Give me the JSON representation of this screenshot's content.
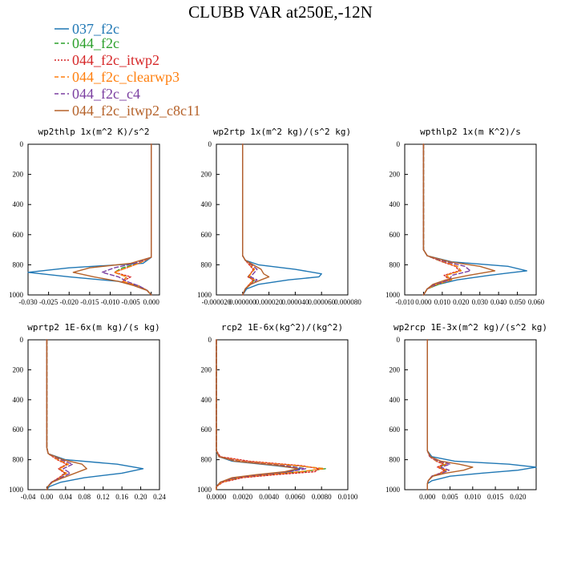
{
  "figure": {
    "title": "CLUBB VAR at250E,-12N"
  },
  "colors": {
    "037_f2c": "#1f77b4",
    "044_f2c": "#2ca02c",
    "044_f2c_itwp2": "#d62728",
    "044_f2c_clearwp3": "#ff7f0e",
    "044_f2c_c4": "#7b3fa0",
    "044_f2c_itwp2_c8c11": "#b5622a"
  },
  "legend": [
    {
      "name": "037_f2c",
      "color": "#1f77b4",
      "dash": "solid"
    },
    {
      "name": "044_f2c",
      "color": "#2ca02c",
      "dash": "dashed"
    },
    {
      "name": "044_f2c_itwp2",
      "color": "#d62728",
      "dash": "dotted"
    },
    {
      "name": "044_f2c_clearwp3",
      "color": "#ff7f0e",
      "dash": "dashed"
    },
    {
      "name": "044_f2c_c4",
      "color": "#7b3fa0",
      "dash": "dashed"
    },
    {
      "name": "044_f2c_itwp2_c8c11",
      "color": "#b5622a",
      "dash": "solid"
    }
  ],
  "chart_data": [
    {
      "type": "line",
      "title": "wp2thlp  1x(m^2 K)/s^2",
      "xlim": [
        -0.03,
        0.002
      ],
      "ylim": [
        1000,
        0
      ],
      "xticks": [
        -0.03,
        -0.025,
        -0.02,
        -0.015,
        -0.01,
        -0.005,
        0.0
      ],
      "xtick_labels": [
        "-0.030",
        "-0.025",
        "-0.020",
        "-0.015",
        "-0.010",
        "-0.005",
        "0.000"
      ],
      "yticks": [
        0,
        200,
        400,
        600,
        800,
        1000
      ],
      "y": [
        0,
        700,
        750,
        790,
        820,
        850,
        880,
        910,
        940,
        970,
        1000
      ],
      "series": [
        {
          "name": "037_f2c",
          "values": [
            0,
            0,
            0,
            -0.002,
            -0.02,
            -0.03,
            -0.02,
            -0.008,
            -0.003,
            -0.001,
            0
          ]
        },
        {
          "name": "044_f2c",
          "values": [
            0,
            0,
            0,
            -0.003,
            -0.007,
            -0.009,
            -0.006,
            -0.007,
            -0.004,
            -0.001,
            0
          ]
        },
        {
          "name": "044_f2c_itwp2",
          "values": [
            0,
            0,
            0,
            -0.003,
            -0.006,
            -0.009,
            -0.005,
            -0.007,
            -0.004,
            -0.001,
            0
          ]
        },
        {
          "name": "044_f2c_clearwp3",
          "values": [
            0,
            0,
            0,
            -0.003,
            -0.006,
            -0.009,
            -0.006,
            -0.007,
            -0.003,
            -0.001,
            0
          ]
        },
        {
          "name": "044_f2c_c4",
          "values": [
            0,
            0,
            0,
            -0.004,
            -0.009,
            -0.012,
            -0.008,
            -0.006,
            -0.003,
            -0.001,
            0
          ]
        },
        {
          "name": "044_f2c_itwp2_c8c11",
          "values": [
            0,
            0,
            0,
            -0.005,
            -0.015,
            -0.019,
            -0.014,
            -0.008,
            -0.004,
            -0.001,
            0
          ]
        }
      ]
    },
    {
      "type": "line",
      "title": "wp2rtp  1x(m^2 kg)/(s^2 kg)",
      "xlim": [
        -2e-05,
        8e-05
      ],
      "ylim": [
        1000,
        0
      ],
      "xticks": [
        -2e-05,
        0.0,
        2e-05,
        4e-05,
        6e-05,
        8e-05
      ],
      "xtick_labels": [
        "-0.000020",
        "0.000000",
        "0.000020",
        "0.000040",
        "0.000060",
        "0.000080"
      ],
      "yticks": [
        0,
        200,
        400,
        600,
        800,
        1000
      ],
      "y": [
        0,
        740,
        770,
        800,
        830,
        860,
        880,
        900,
        930,
        960,
        1000
      ],
      "series": [
        {
          "name": "037_f2c",
          "values": [
            0,
            0,
            2e-06,
            1.2e-05,
            4e-05,
            6e-05,
            5.8e-05,
            3.5e-05,
            1.2e-05,
            3e-06,
            0
          ]
        },
        {
          "name": "044_f2c",
          "values": [
            0,
            0,
            2e-06,
            6e-06,
            9e-06,
            6e-06,
            4e-06,
            9e-06,
            6e-06,
            2e-06,
            0
          ]
        },
        {
          "name": "044_f2c_itwp2",
          "values": [
            0,
            0,
            2e-06,
            5e-06,
            8e-06,
            6e-06,
            4e-06,
            8e-06,
            5e-06,
            2e-06,
            0
          ]
        },
        {
          "name": "044_f2c_clearwp3",
          "values": [
            0,
            0,
            2e-06,
            6e-06,
            9e-06,
            6e-06,
            5e-06,
            9e-06,
            5e-06,
            2e-06,
            0
          ]
        },
        {
          "name": "044_f2c_c4",
          "values": [
            0,
            0,
            2e-06,
            7e-06,
            1.1e-05,
            8e-06,
            6e-06,
            1.1e-05,
            6e-06,
            2e-06,
            0
          ]
        },
        {
          "name": "044_f2c_itwp2_c8c11",
          "values": [
            0,
            0,
            2e-06,
            8e-06,
            1.4e-05,
            1.6e-05,
            2e-05,
            1.4e-05,
            6e-06,
            2e-06,
            0
          ]
        }
      ]
    },
    {
      "type": "line",
      "title": "wpthlp2  1x(m K^2)/s",
      "xlim": [
        -0.01,
        0.06
      ],
      "ylim": [
        1000,
        0
      ],
      "xticks": [
        -0.01,
        0.0,
        0.01,
        0.02,
        0.03,
        0.04,
        0.05,
        0.06
      ],
      "xtick_labels": [
        "-0.010",
        "0.000",
        "0.010",
        "0.020",
        "0.030",
        "0.040",
        "0.050",
        "0.060"
      ],
      "yticks": [
        0,
        200,
        400,
        600,
        800,
        1000
      ],
      "y": [
        0,
        700,
        740,
        780,
        810,
        840,
        870,
        900,
        930,
        960,
        1000
      ],
      "series": [
        {
          "name": "037_f2c",
          "values": [
            0,
            0,
            0.002,
            0.015,
            0.045,
            0.055,
            0.035,
            0.018,
            0.008,
            0.002,
            0
          ]
        },
        {
          "name": "044_f2c",
          "values": [
            0,
            0,
            0.002,
            0.01,
            0.018,
            0.02,
            0.012,
            0.015,
            0.008,
            0.002,
            0
          ]
        },
        {
          "name": "044_f2c_itwp2",
          "values": [
            0,
            0,
            0.002,
            0.01,
            0.017,
            0.019,
            0.011,
            0.014,
            0.007,
            0.002,
            0
          ]
        },
        {
          "name": "044_f2c_clearwp3",
          "values": [
            0,
            0,
            0.002,
            0.011,
            0.018,
            0.02,
            0.012,
            0.015,
            0.007,
            0.002,
            0
          ]
        },
        {
          "name": "044_f2c_c4",
          "values": [
            0,
            0,
            0.002,
            0.012,
            0.022,
            0.025,
            0.015,
            0.014,
            0.006,
            0.002,
            0
          ]
        },
        {
          "name": "044_f2c_itwp2_c8c11",
          "values": [
            0,
            0,
            0.002,
            0.014,
            0.03,
            0.038,
            0.024,
            0.012,
            0.005,
            0.002,
            0
          ]
        }
      ]
    },
    {
      "type": "line",
      "title": "wprtp2  1E-6x(m kg)/(s kg)",
      "xlim": [
        -0.04,
        0.24
      ],
      "ylim": [
        1000,
        0
      ],
      "xticks": [
        -0.04,
        0.0,
        0.04,
        0.08,
        0.12,
        0.16,
        0.2,
        0.24
      ],
      "xtick_labels": [
        "-0.04",
        "0.00",
        "0.04",
        "0.08",
        "0.12",
        "0.16",
        "0.20",
        "0.24"
      ],
      "yticks": [
        0,
        200,
        400,
        600,
        800,
        1000
      ],
      "y": [
        0,
        720,
        760,
        800,
        830,
        860,
        890,
        920,
        950,
        980,
        1000
      ],
      "series": [
        {
          "name": "037_f2c",
          "values": [
            0,
            0,
            0.003,
            0.04,
            0.15,
            0.205,
            0.16,
            0.08,
            0.03,
            0.005,
            0
          ]
        },
        {
          "name": "044_f2c",
          "values": [
            0,
            0,
            0.003,
            0.025,
            0.045,
            0.025,
            0.04,
            0.028,
            0.01,
            0.002,
            0
          ]
        },
        {
          "name": "044_f2c_itwp2",
          "values": [
            0,
            0,
            0.003,
            0.022,
            0.042,
            0.025,
            0.038,
            0.026,
            0.01,
            0.002,
            0
          ]
        },
        {
          "name": "044_f2c_clearwp3",
          "values": [
            0,
            0,
            0.003,
            0.024,
            0.046,
            0.027,
            0.042,
            0.028,
            0.01,
            0.002,
            0
          ]
        },
        {
          "name": "044_f2c_c4",
          "values": [
            0,
            0,
            0.003,
            0.03,
            0.055,
            0.035,
            0.05,
            0.03,
            0.01,
            0.002,
            0
          ]
        },
        {
          "name": "044_f2c_itwp2_c8c11",
          "values": [
            0,
            0,
            0.003,
            0.035,
            0.075,
            0.085,
            0.06,
            0.035,
            0.012,
            0.002,
            0
          ]
        }
      ]
    },
    {
      "type": "line",
      "title": "rcp2  1E-6x(kg^2)/(kg^2)",
      "xlim": [
        0.0,
        0.01
      ],
      "ylim": [
        1000,
        0
      ],
      "xticks": [
        0.0,
        0.002,
        0.004,
        0.006,
        0.008,
        0.01
      ],
      "xtick_labels": [
        "0.0000",
        "0.0020",
        "0.0040",
        "0.0060",
        "0.0080",
        "0.0100"
      ],
      "yticks": [
        0,
        200,
        400,
        600,
        800,
        1000
      ],
      "y": [
        0,
        740,
        780,
        810,
        840,
        860,
        880,
        900,
        920,
        950,
        980,
        1000
      ],
      "series": [
        {
          "name": "037_f2c",
          "values": [
            0,
            0,
            0.0002,
            0.0012,
            0.0045,
            0.0064,
            0.0055,
            0.0035,
            0.0015,
            0.0003,
            0,
            0
          ]
        },
        {
          "name": "044_f2c",
          "values": [
            0,
            0,
            0.0002,
            0.002,
            0.006,
            0.0083,
            0.0065,
            0.004,
            0.0018,
            0.0004,
            0,
            0
          ]
        },
        {
          "name": "044_f2c_itwp2",
          "values": [
            0,
            0,
            0.0003,
            0.0025,
            0.0065,
            0.0078,
            0.0075,
            0.0045,
            0.002,
            0.0005,
            0,
            0
          ]
        },
        {
          "name": "044_f2c_clearwp3",
          "values": [
            0,
            0,
            0.0002,
            0.002,
            0.0062,
            0.0082,
            0.0064,
            0.0038,
            0.0016,
            0.0004,
            0,
            0
          ]
        },
        {
          "name": "044_f2c_c4",
          "values": [
            0,
            0,
            0.0002,
            0.0016,
            0.0052,
            0.0068,
            0.0056,
            0.0034,
            0.0014,
            0.0003,
            0,
            0
          ]
        },
        {
          "name": "044_f2c_itwp2_c8c11",
          "values": [
            0,
            0,
            0.0002,
            0.0014,
            0.0048,
            0.0062,
            0.0052,
            0.003,
            0.0012,
            0.0003,
            0,
            0
          ]
        }
      ]
    },
    {
      "type": "line",
      "title": "wp2rcp  1E-3x(m^2 kg)/(s^2 kg)",
      "xlim": [
        -0.005,
        0.024
      ],
      "ylim": [
        1000,
        0
      ],
      "xticks": [
        0.0,
        0.005,
        0.01,
        0.015,
        0.02
      ],
      "xtick_labels": [
        "0.000",
        "0.005",
        "0.010",
        "0.015",
        "0.020"
      ],
      "yticks": [
        0,
        200,
        400,
        600,
        800,
        1000
      ],
      "y": [
        0,
        740,
        780,
        810,
        830,
        850,
        870,
        890,
        910,
        940,
        960,
        1000
      ],
      "series": [
        {
          "name": "037_f2c",
          "values": [
            0,
            0,
            0.001,
            0.006,
            0.018,
            0.024,
            0.02,
            0.012,
            0.005,
            0.001,
            0,
            0
          ]
        },
        {
          "name": "044_f2c",
          "values": [
            0,
            0,
            0.0006,
            0.002,
            0.004,
            0.0025,
            0.004,
            0.003,
            0.001,
            0.0002,
            0,
            0
          ]
        },
        {
          "name": "044_f2c_itwp2",
          "values": [
            0,
            0,
            0.0005,
            0.002,
            0.0035,
            0.0022,
            0.0038,
            0.0028,
            0.001,
            0.0002,
            0,
            0
          ]
        },
        {
          "name": "044_f2c_clearwp3",
          "values": [
            0,
            0,
            0.0006,
            0.0022,
            0.0042,
            0.0026,
            0.0042,
            0.003,
            0.001,
            0.0002,
            0,
            0
          ]
        },
        {
          "name": "044_f2c_c4",
          "values": [
            0,
            0,
            0.0006,
            0.0025,
            0.005,
            0.003,
            0.0048,
            0.0032,
            0.001,
            0.0002,
            0,
            0
          ]
        },
        {
          "name": "044_f2c_itwp2_c8c11",
          "values": [
            0,
            0,
            0.0007,
            0.003,
            0.007,
            0.01,
            0.008,
            0.004,
            0.0012,
            0.0002,
            0,
            0
          ]
        }
      ]
    }
  ]
}
